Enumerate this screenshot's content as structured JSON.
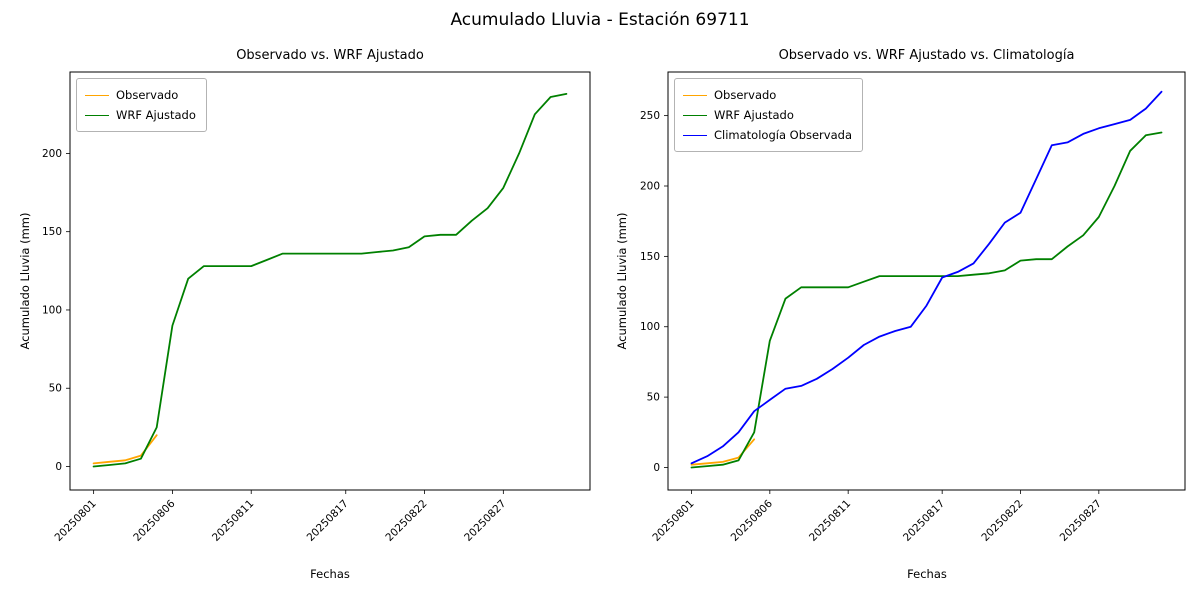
{
  "figure": {
    "suptitle": "Acumulado Lluvia - Estación 69711",
    "background": "#ffffff"
  },
  "chart_data": [
    {
      "type": "line",
      "title": "Observado vs. WRF Ajustado",
      "xlabel": "Fechas",
      "ylabel": "Acumulado Lluvia (mm)",
      "legend_position": "upper left",
      "grid": false,
      "ylim": [
        -15,
        252
      ],
      "yticks": [
        0,
        50,
        100,
        150,
        200
      ],
      "xticks": [
        "20250801",
        "20250806",
        "20250811",
        "20250817",
        "20250822",
        "20250827"
      ],
      "x": [
        "20250801",
        "20250802",
        "20250803",
        "20250804",
        "20250805",
        "20250806",
        "20250807",
        "20250808",
        "20250809",
        "20250810",
        "20250811",
        "20250812",
        "20250813",
        "20250814",
        "20250815",
        "20250816",
        "20250817",
        "20250818",
        "20250819",
        "20250820",
        "20250821",
        "20250822",
        "20250823",
        "20250824",
        "20250825",
        "20250826",
        "20250827",
        "20250828",
        "20250829",
        "20250830",
        "20250831"
      ],
      "series": [
        {
          "name": "Observado",
          "color": "#FFA500",
          "values": [
            2,
            3,
            4,
            7,
            20,
            null,
            null,
            null,
            null,
            null,
            null,
            null,
            null,
            null,
            null,
            null,
            null,
            null,
            null,
            null,
            null,
            null,
            null,
            null,
            null,
            null,
            null,
            null,
            null,
            null,
            null
          ]
        },
        {
          "name": "WRF Ajustado",
          "color": "#008000",
          "values": [
            0,
            1,
            2,
            5,
            25,
            90,
            120,
            128,
            128,
            128,
            128,
            132,
            136,
            136,
            136,
            136,
            136,
            136,
            137,
            138,
            140,
            147,
            148,
            148,
            157,
            165,
            178,
            200,
            225,
            236,
            238
          ]
        }
      ]
    },
    {
      "type": "line",
      "title": "Observado vs. WRF Ajustado vs. Climatología",
      "xlabel": "Fechas",
      "ylabel": "Acumulado Lluvia (mm)",
      "legend_position": "upper left",
      "grid": false,
      "ylim": [
        -16,
        281
      ],
      "yticks": [
        0,
        50,
        100,
        150,
        200,
        250
      ],
      "xticks": [
        "20250801",
        "20250806",
        "20250811",
        "20250817",
        "20250822",
        "20250827"
      ],
      "x": [
        "20250801",
        "20250802",
        "20250803",
        "20250804",
        "20250805",
        "20250806",
        "20250807",
        "20250808",
        "20250809",
        "20250810",
        "20250811",
        "20250812",
        "20250813",
        "20250814",
        "20250815",
        "20250816",
        "20250817",
        "20250818",
        "20250819",
        "20250820",
        "20250821",
        "20250822",
        "20250823",
        "20250824",
        "20250825",
        "20250826",
        "20250827",
        "20250828",
        "20250829",
        "20250830",
        "20250831"
      ],
      "series": [
        {
          "name": "Observado",
          "color": "#FFA500",
          "values": [
            2,
            3,
            4,
            7,
            20,
            null,
            null,
            null,
            null,
            null,
            null,
            null,
            null,
            null,
            null,
            null,
            null,
            null,
            null,
            null,
            null,
            null,
            null,
            null,
            null,
            null,
            null,
            null,
            null,
            null,
            null
          ]
        },
        {
          "name": "WRF Ajustado",
          "color": "#008000",
          "values": [
            0,
            1,
            2,
            5,
            25,
            90,
            120,
            128,
            128,
            128,
            128,
            132,
            136,
            136,
            136,
            136,
            136,
            136,
            137,
            138,
            140,
            147,
            148,
            148,
            157,
            165,
            178,
            200,
            225,
            236,
            238
          ]
        },
        {
          "name": "Climatología Observada",
          "color": "#0000FF",
          "values": [
            3,
            8,
            15,
            25,
            40,
            48,
            56,
            58,
            63,
            70,
            78,
            87,
            93,
            97,
            100,
            115,
            135,
            139,
            145,
            159,
            174,
            181,
            205,
            229,
            231,
            237,
            241,
            244,
            247,
            255,
            267
          ]
        }
      ]
    }
  ]
}
